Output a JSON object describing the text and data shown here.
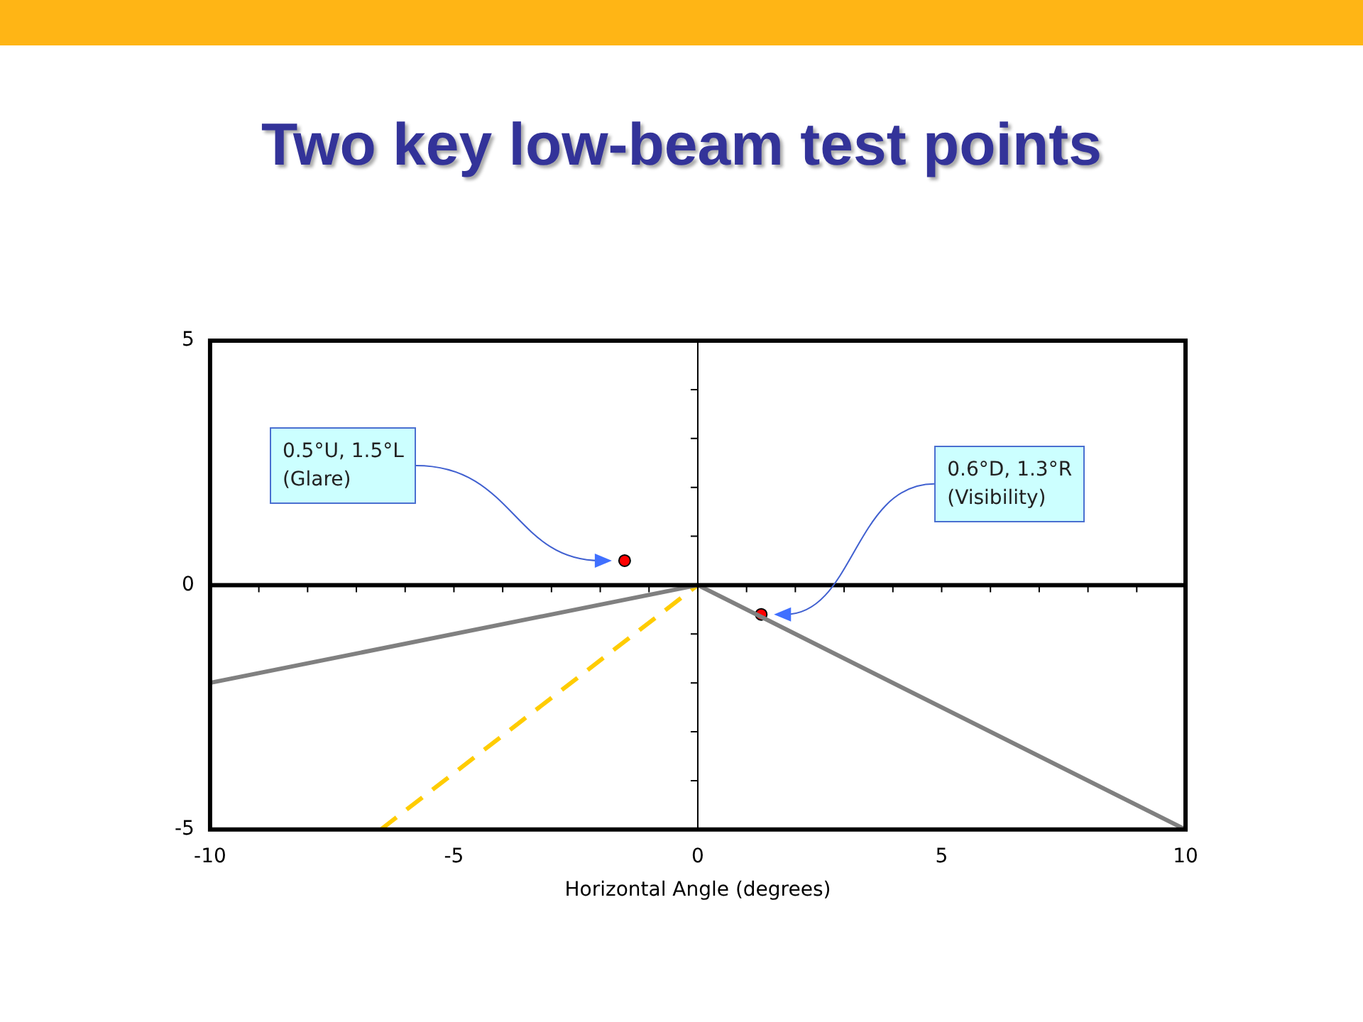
{
  "chart_data": {
    "type": "line",
    "title": "Two key low-beam test points",
    "xlabel": "Horizontal Angle (degrees)",
    "xlim": [
      -10,
      10
    ],
    "ylim": [
      -5,
      5
    ],
    "xticks": [
      -10,
      {
        "value": -9,
        "label": null
      },
      {
        "value": -8,
        "label": null
      },
      {
        "value": -7,
        "label": null
      },
      {
        "value": -6,
        "label": null
      },
      -5,
      {
        "value": -4,
        "label": null
      },
      {
        "value": -3,
        "label": null
      },
      {
        "value": -2,
        "label": null
      },
      {
        "value": -1,
        "label": null
      },
      0,
      {
        "value": 1,
        "label": null
      },
      {
        "value": 2,
        "label": null
      },
      {
        "value": 3,
        "label": null
      },
      {
        "value": 4,
        "label": null
      },
      5,
      {
        "value": 6,
        "label": null
      },
      {
        "value": 7,
        "label": null
      },
      {
        "value": 8,
        "label": null
      },
      {
        "value": 9,
        "label": null
      },
      10
    ],
    "yticks": [
      -5,
      {
        "value": -4,
        "label": null
      },
      {
        "value": -3,
        "label": null
      },
      {
        "value": -2,
        "label": null
      },
      {
        "value": -1,
        "label": null
      },
      0,
      {
        "value": 1,
        "label": null
      },
      {
        "value": 2,
        "label": null
      },
      {
        "value": 3,
        "label": null
      },
      {
        "value": 4,
        "label": null
      },
      5
    ],
    "grid": false,
    "legend": false,
    "series": [
      {
        "color": "#808080",
        "x": [
          -10,
          0,
          10
        ],
        "values": [
          -2,
          0,
          -5
        ],
        "marker": "none",
        "line_style": "solid"
      },
      {
        "color": "#ffcc00",
        "x": [
          -6.5,
          0
        ],
        "values": [
          -5,
          0
        ],
        "marker": "none",
        "line_style": "dashed"
      },
      {
        "type": "scatter",
        "color": "#ff0000",
        "x": [
          -1.5,
          1.3
        ],
        "values": [
          0.5,
          -0.6
        ],
        "marker": "circle"
      }
    ],
    "annotations": [
      "0.5°U, 1.5°L\n(Glare)",
      "0.6°D, 1.3°R\n(Visibility)"
    ]
  }
}
